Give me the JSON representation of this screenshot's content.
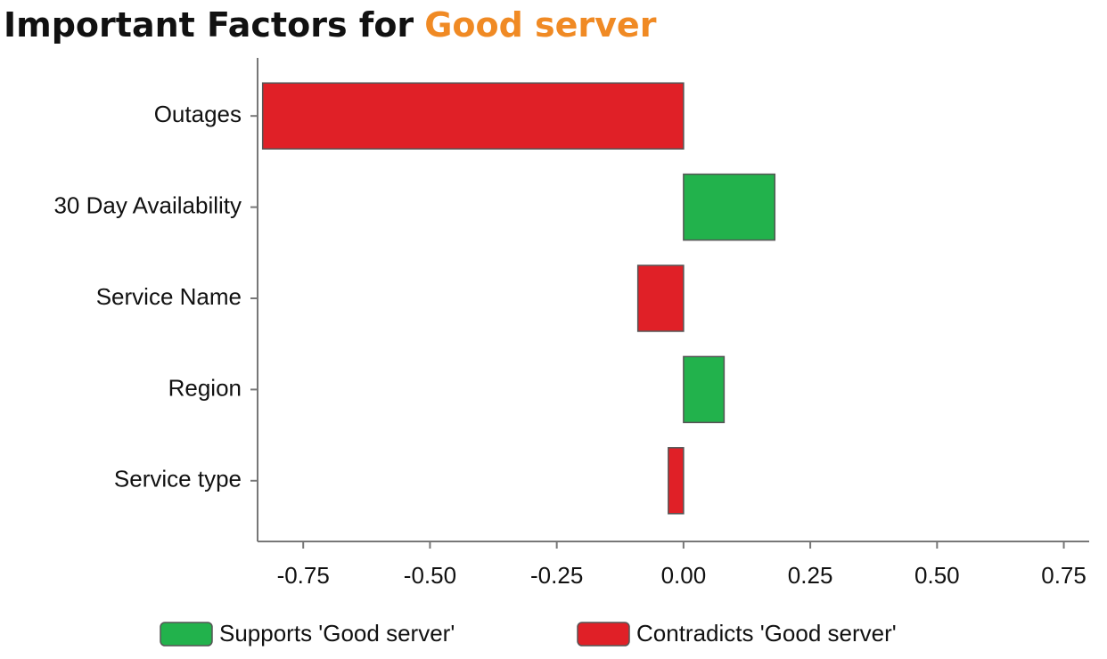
{
  "chart_data": {
    "type": "hbar",
    "title": {
      "text": "Important Factors for",
      "highlight": "Good server",
      "highlight_color": "#f08a24"
    },
    "categories": [
      "Outages",
      "30 Day Availability",
      "Service Name",
      "Region",
      "Service type"
    ],
    "series": [
      {
        "name": "Supports 'Good server'",
        "color": "#22b24c",
        "values": [
          null,
          0.18,
          null,
          0.08,
          null
        ]
      },
      {
        "name": "Contradicts 'Good server'",
        "color": "#e02027",
        "values": [
          -0.83,
          null,
          -0.09,
          null,
          -0.03
        ]
      }
    ],
    "xlim": [
      -0.84,
      0.8
    ],
    "xticks": [
      -0.75,
      {
        "value": -0.5,
        "label": "-0.50"
      },
      {
        "value": -0.25,
        "label": "-0.25"
      },
      {
        "value": 0,
        "label": "0.00"
      },
      0.25,
      {
        "value": 0.5,
        "label": "0.50"
      },
      0.75
    ]
  }
}
